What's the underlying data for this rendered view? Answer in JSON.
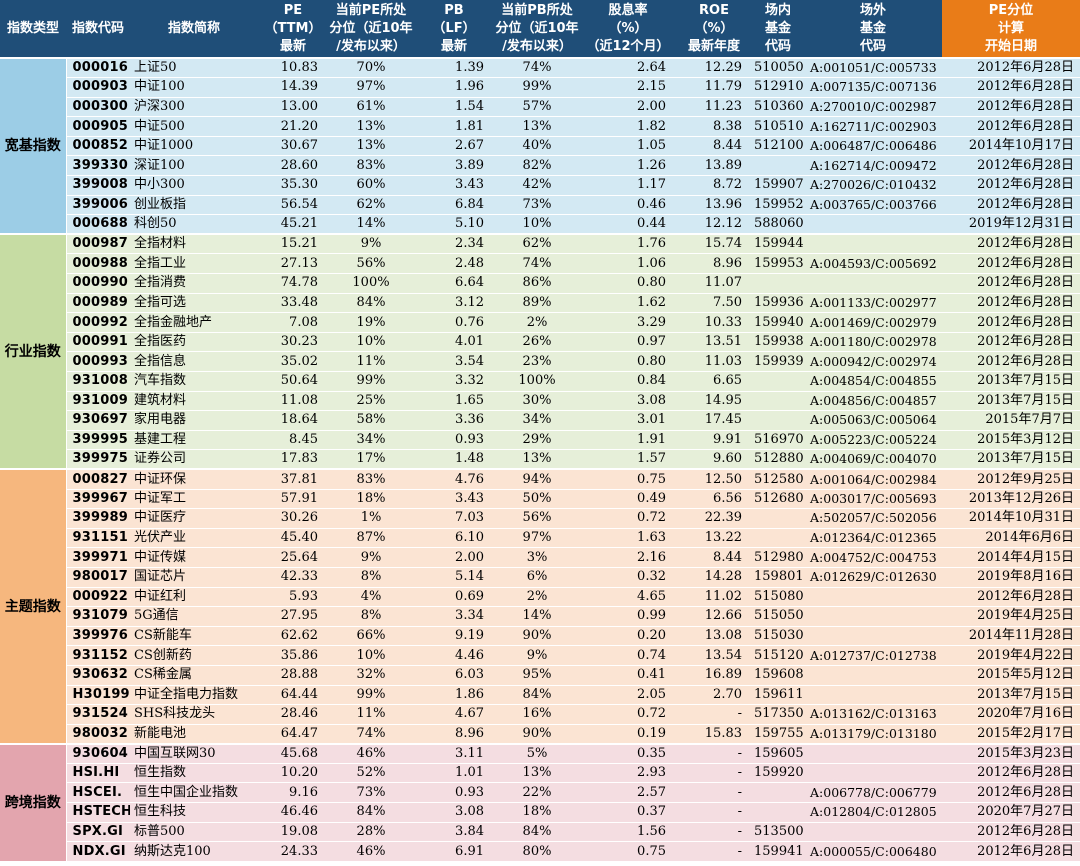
{
  "headers": [
    [
      "指数类型"
    ],
    [
      "指数代码"
    ],
    [
      "指数简称"
    ],
    [
      "PE",
      "（TTM）",
      "最新"
    ],
    [
      "当前PE所处",
      "分位（近10年",
      "/发布以来）"
    ],
    [
      "PB",
      "（LF）",
      "最新"
    ],
    [
      "当前PB所处",
      "分位（近10年",
      "/发布以来）"
    ],
    [
      "股息率",
      "（%）",
      "（近12个月）"
    ],
    [
      "ROE",
      "（%）",
      "最新年度"
    ],
    [
      "场内",
      "基金",
      "代码"
    ],
    [
      "场外",
      "基金",
      "代码"
    ],
    [
      "PE分位",
      "计算",
      "开始日期"
    ]
  ],
  "groups": [
    {
      "label": "宽基指数",
      "rows": [
        [
          "000016",
          "上证50",
          "10.83",
          "70%",
          "1.39",
          "74%",
          "2.64",
          "12.29",
          "510050",
          "A:001051/C:005733",
          "2012年6月28日"
        ],
        [
          "000903",
          "中证100",
          "14.39",
          "97%",
          "1.96",
          "99%",
          "2.15",
          "11.79",
          "512910",
          "A:007135/C:007136",
          "2012年6月28日"
        ],
        [
          "000300",
          "沪深300",
          "13.00",
          "61%",
          "1.54",
          "57%",
          "2.00",
          "11.23",
          "510360",
          "A:270010/C:002987",
          "2012年6月28日"
        ],
        [
          "000905",
          "中证500",
          "21.20",
          "13%",
          "1.81",
          "13%",
          "1.82",
          "8.38",
          "510510",
          "A:162711/C:002903",
          "2012年6月28日"
        ],
        [
          "000852",
          "中证1000",
          "30.67",
          "13%",
          "2.67",
          "40%",
          "1.05",
          "8.44",
          "512100",
          "A:006487/C:006486",
          "2014年10月17日"
        ],
        [
          "399330",
          "深证100",
          "28.60",
          "83%",
          "3.89",
          "82%",
          "1.26",
          "13.89",
          "",
          "A:162714/C:009472",
          "2012年6月28日"
        ],
        [
          "399008",
          "中小300",
          "35.30",
          "60%",
          "3.43",
          "42%",
          "1.17",
          "8.72",
          "159907",
          "A:270026/C:010432",
          "2012年6月28日"
        ],
        [
          "399006",
          "创业板指",
          "56.54",
          "62%",
          "6.84",
          "73%",
          "0.46",
          "13.96",
          "159952",
          "A:003765/C:003766",
          "2012年6月28日"
        ],
        [
          "000688",
          "科创50",
          "45.21",
          "14%",
          "5.10",
          "10%",
          "0.44",
          "12.12",
          "588060",
          "",
          "2019年12月31日"
        ]
      ]
    },
    {
      "label": "行业指数",
      "rows": [
        [
          "000987",
          "全指材料",
          "15.21",
          "9%",
          "2.34",
          "62%",
          "1.76",
          "15.74",
          "159944",
          "",
          "2012年6月28日"
        ],
        [
          "000988",
          "全指工业",
          "27.13",
          "56%",
          "2.48",
          "74%",
          "1.06",
          "8.96",
          "159953",
          "A:004593/C:005692",
          "2012年6月28日"
        ],
        [
          "000990",
          "全指消费",
          "74.78",
          "100%",
          "6.64",
          "86%",
          "0.80",
          "11.07",
          "",
          "",
          "2012年6月28日"
        ],
        [
          "000989",
          "全指可选",
          "33.48",
          "84%",
          "3.12",
          "89%",
          "1.62",
          "7.50",
          "159936",
          "A:001133/C:002977",
          "2012年6月28日"
        ],
        [
          "000992",
          "全指金融地产",
          "7.08",
          "19%",
          "0.76",
          "2%",
          "3.29",
          "10.33",
          "159940",
          "A:001469/C:002979",
          "2012年6月28日"
        ],
        [
          "000991",
          "全指医药",
          "30.23",
          "10%",
          "4.01",
          "26%",
          "0.97",
          "13.51",
          "159938",
          "A:001180/C:002978",
          "2012年6月28日"
        ],
        [
          "000993",
          "全指信息",
          "35.02",
          "11%",
          "3.54",
          "23%",
          "0.80",
          "11.03",
          "159939",
          "A:000942/C:002974",
          "2012年6月28日"
        ],
        [
          "931008",
          "汽车指数",
          "50.64",
          "99%",
          "3.32",
          "100%",
          "0.84",
          "6.65",
          "",
          "A:004854/C:004855",
          "2013年7月15日"
        ],
        [
          "931009",
          "建筑材料",
          "11.08",
          "25%",
          "1.65",
          "30%",
          "3.08",
          "14.95",
          "",
          "A:004856/C:004857",
          "2013年7月15日"
        ],
        [
          "930697",
          "家用电器",
          "18.64",
          "58%",
          "3.36",
          "34%",
          "3.01",
          "17.45",
          "",
          "A:005063/C:005064",
          "2015年7月7日"
        ],
        [
          "399995",
          "基建工程",
          "8.45",
          "34%",
          "0.93",
          "29%",
          "1.91",
          "9.91",
          "516970",
          "A:005223/C:005224",
          "2015年3月12日"
        ],
        [
          "399975",
          "证券公司",
          "17.83",
          "17%",
          "1.48",
          "13%",
          "1.57",
          "9.60",
          "512880",
          "A:004069/C:004070",
          "2013年7月15日"
        ]
      ]
    },
    {
      "label": "主题指数",
      "rows": [
        [
          "000827",
          "中证环保",
          "37.81",
          "83%",
          "4.76",
          "94%",
          "0.75",
          "12.50",
          "512580",
          "A:001064/C:002984",
          "2012年9月25日"
        ],
        [
          "399967",
          "中证军工",
          "57.91",
          "18%",
          "3.43",
          "50%",
          "0.49",
          "6.56",
          "512680",
          "A:003017/C:005693",
          "2013年12月26日"
        ],
        [
          "399989",
          "中证医疗",
          "30.26",
          "1%",
          "7.03",
          "56%",
          "0.72",
          "22.39",
          "",
          "A:502057/C:502056",
          "2014年10月31日"
        ],
        [
          "931151",
          "光伏产业",
          "45.40",
          "87%",
          "6.10",
          "97%",
          "1.63",
          "13.22",
          "",
          "A:012364/C:012365",
          "2014年6月6日"
        ],
        [
          "399971",
          "中证传媒",
          "25.64",
          "9%",
          "2.00",
          "3%",
          "2.16",
          "8.44",
          "512980",
          "A:004752/C:004753",
          "2014年4月15日"
        ],
        [
          "980017",
          "国证芯片",
          "42.33",
          "8%",
          "5.14",
          "6%",
          "0.32",
          "14.28",
          "159801",
          "A:012629/C:012630",
          "2019年8月16日"
        ],
        [
          "000922",
          "中证红利",
          "5.93",
          "4%",
          "0.69",
          "2%",
          "4.65",
          "11.02",
          "515080",
          "",
          "2012年6月28日"
        ],
        [
          "931079",
          "5G通信",
          "27.95",
          "8%",
          "3.34",
          "14%",
          "0.99",
          "12.66",
          "515050",
          "",
          "2019年4月25日"
        ],
        [
          "399976",
          "CS新能车",
          "62.62",
          "66%",
          "9.19",
          "90%",
          "0.20",
          "13.08",
          "515030",
          "",
          "2014年11月28日"
        ],
        [
          "931152",
          "CS创新药",
          "35.86",
          "10%",
          "4.46",
          "9%",
          "0.74",
          "13.54",
          "515120",
          "A:012737/C:012738",
          "2019年4月22日"
        ],
        [
          "930632",
          "CS稀金属",
          "28.88",
          "32%",
          "6.03",
          "95%",
          "0.41",
          "16.89",
          "159608",
          "",
          "2015年5月12日"
        ],
        [
          "H30199",
          "中证全指电力指数",
          "64.44",
          "99%",
          "1.86",
          "84%",
          "2.05",
          "2.70",
          "159611",
          "",
          "2013年7月15日"
        ],
        [
          "931524",
          "SHS科技龙头",
          "28.46",
          "11%",
          "4.67",
          "16%",
          "0.72",
          "-",
          "517350",
          "A:013162/C:013163",
          "2020年7月16日"
        ],
        [
          "980032",
          "新能电池",
          "64.47",
          "74%",
          "8.96",
          "90%",
          "0.19",
          "15.83",
          "159755",
          "A:013179/C:013180",
          "2015年2月17日"
        ]
      ]
    },
    {
      "label": "跨境指数",
      "rows": [
        [
          "930604",
          "中国互联网30",
          "45.68",
          "46%",
          "3.11",
          "5%",
          "0.35",
          "-",
          "159605",
          "",
          "2015年3月23日"
        ],
        [
          "HSI.HI",
          "恒生指数",
          "10.20",
          "52%",
          "1.01",
          "13%",
          "2.93",
          "-",
          "159920",
          "",
          "2012年6月28日"
        ],
        [
          "HSCEI.",
          "恒生中国企业指数",
          "9.16",
          "73%",
          "0.93",
          "22%",
          "2.57",
          "-",
          "",
          "A:006778/C:006779",
          "2012年6月28日"
        ],
        [
          "HSTECH",
          "恒生科技",
          "46.46",
          "84%",
          "3.08",
          "18%",
          "0.37",
          "-",
          "",
          "A:012804/C:012805",
          "2020年7月27日"
        ],
        [
          "SPX.GI",
          "标普500",
          "19.08",
          "28%",
          "3.84",
          "84%",
          "1.56",
          "-",
          "513500",
          "",
          "2012年6月28日"
        ],
        [
          "NDX.GI",
          "纳斯达克100",
          "24.33",
          "46%",
          "6.91",
          "80%",
          "0.75",
          "-",
          "159941",
          "A:000055/C:006480",
          "2012年6月28日"
        ]
      ]
    }
  ]
}
